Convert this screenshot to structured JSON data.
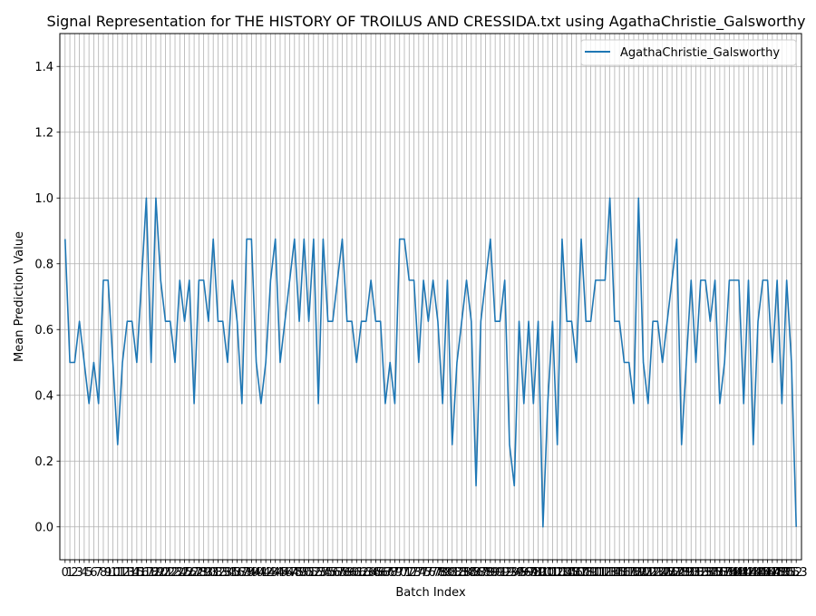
{
  "chart_data": {
    "type": "line",
    "title": "Signal Representation for THE HISTORY OF TROILUS AND CRESSIDA.txt using AgathaChristie_Galsworthy",
    "xlabel": "Batch Index",
    "ylabel": "Mean Prediction Value",
    "ylim": [
      -0.1,
      1.5
    ],
    "yticks": [
      0.0,
      0.2,
      0.4,
      0.6,
      0.8,
      1.0,
      1.2,
      1.4
    ],
    "xlim": [
      -1.1,
      154.1
    ],
    "grid": true,
    "legend_position": "top-right",
    "x_start": 0,
    "series": [
      {
        "name": "AgathaChristie_Galsworthy",
        "color": "#1f77b4",
        "values": [
          0.875,
          0.5,
          0.5,
          0.625,
          0.5,
          0.375,
          0.5,
          0.375,
          0.75,
          0.75,
          0.5,
          0.25,
          0.5,
          0.625,
          0.625,
          0.5,
          0.75,
          1.0,
          0.5,
          1.0,
          0.75,
          0.625,
          0.625,
          0.5,
          0.75,
          0.625,
          0.75,
          0.375,
          0.75,
          0.75,
          0.625,
          0.875,
          0.625,
          0.625,
          0.5,
          0.75,
          0.625,
          0.375,
          0.875,
          0.875,
          0.5,
          0.375,
          0.5,
          0.75,
          0.875,
          0.5,
          0.625,
          0.75,
          0.875,
          0.625,
          0.875,
          0.625,
          0.875,
          0.375,
          0.875,
          0.625,
          0.625,
          0.75,
          0.875,
          0.625,
          0.625,
          0.5,
          0.625,
          0.625,
          0.75,
          0.625,
          0.625,
          0.375,
          0.5,
          0.375,
          0.875,
          0.875,
          0.75,
          0.75,
          0.5,
          0.75,
          0.625,
          0.75,
          0.625,
          0.375,
          0.75,
          0.25,
          0.5,
          0.625,
          0.75,
          0.625,
          0.125,
          0.625,
          0.75,
          0.875,
          0.625,
          0.625,
          0.75,
          0.25,
          0.125,
          0.625,
          0.375,
          0.625,
          0.375,
          0.625,
          0.0,
          0.375,
          0.625,
          0.25,
          0.875,
          0.625,
          0.625,
          0.5,
          0.875,
          0.625,
          0.625,
          0.75,
          0.75,
          0.75,
          1.0,
          0.625,
          0.625,
          0.5,
          0.5,
          0.375,
          1.0,
          0.5,
          0.375,
          0.625,
          0.625,
          0.5,
          0.625,
          0.75,
          0.875,
          0.25,
          0.5,
          0.75,
          0.5,
          0.75,
          0.75,
          0.625,
          0.75,
          0.375,
          0.5,
          0.75,
          0.75,
          0.75,
          0.375,
          0.75,
          0.25,
          0.625,
          0.75,
          0.75,
          0.5,
          0.75,
          0.375,
          0.75,
          0.5,
          0.0
        ]
      }
    ]
  }
}
